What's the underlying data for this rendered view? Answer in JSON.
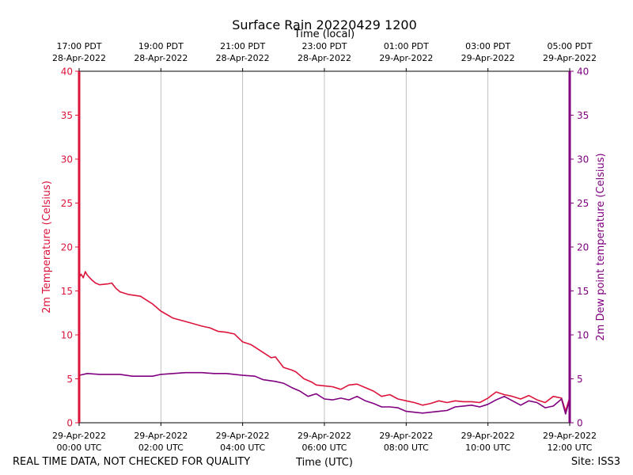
{
  "chart_data": {
    "type": "line",
    "title": "Surface Rain 20220429 1200",
    "top_axis_label": "Time (local)",
    "xlabel": "Time (UTC)",
    "ylabel_left": "2m Temperature (Celsius)",
    "ylabel_right": "2m Dew point temperature (Celsius)",
    "footer_left": "REAL TIME DATA, NOT CHECKED FOR QUALITY",
    "footer_right": "Site: ISS3",
    "x_range_hours": [
      0,
      12
    ],
    "ylim_left": [
      0,
      40
    ],
    "ylim_right": [
      0,
      40
    ],
    "y_ticks": [
      "0",
      "5",
      "10",
      "15",
      "20",
      "25",
      "30",
      "35",
      "40"
    ],
    "x_ticks_bottom": [
      {
        "hour": 0,
        "date": "29-Apr-2022",
        "time": "00:00 UTC"
      },
      {
        "hour": 2,
        "date": "29-Apr-2022",
        "time": "02:00 UTC"
      },
      {
        "hour": 4,
        "date": "29-Apr-2022",
        "time": "04:00 UTC"
      },
      {
        "hour": 6,
        "date": "29-Apr-2022",
        "time": "06:00 UTC"
      },
      {
        "hour": 8,
        "date": "29-Apr-2022",
        "time": "08:00 UTC"
      },
      {
        "hour": 10,
        "date": "29-Apr-2022",
        "time": "10:00 UTC"
      },
      {
        "hour": 12,
        "date": "29-Apr-2022",
        "time": "12:00 UTC"
      }
    ],
    "x_ticks_top": [
      {
        "hour": 0,
        "time": "17:00 PDT",
        "date": "28-Apr-2022"
      },
      {
        "hour": 2,
        "time": "19:00 PDT",
        "date": "28-Apr-2022"
      },
      {
        "hour": 4,
        "time": "21:00 PDT",
        "date": "28-Apr-2022"
      },
      {
        "hour": 6,
        "time": "23:00 PDT",
        "date": "28-Apr-2022"
      },
      {
        "hour": 8,
        "time": "01:00 PDT",
        "date": "29-Apr-2022"
      },
      {
        "hour": 10,
        "time": "03:00 PDT",
        "date": "29-Apr-2022"
      },
      {
        "hour": 12,
        "time": "05:00 PDT",
        "date": "29-Apr-2022"
      }
    ],
    "series": [
      {
        "name": "2m Temperature",
        "axis": "left",
        "color": "#dc143c",
        "x": [
          0,
          0.05,
          0.1,
          0.15,
          0.2,
          0.3,
          0.4,
          0.5,
          0.7,
          0.8,
          0.9,
          1.0,
          1.2,
          1.5,
          1.8,
          2.0,
          2.3,
          2.7,
          3.0,
          3.2,
          3.4,
          3.6,
          3.8,
          4.0,
          4.2,
          4.5,
          4.7,
          4.8,
          5.0,
          5.2,
          5.3,
          5.5,
          5.7,
          5.8,
          6.0,
          6.2,
          6.4,
          6.6,
          6.8,
          7.0,
          7.2,
          7.4,
          7.6,
          7.8,
          8.0,
          8.2,
          8.4,
          8.6,
          8.8,
          9.0,
          9.2,
          9.4,
          9.6,
          9.8,
          10.0,
          10.2,
          10.4,
          10.6,
          10.8,
          11.0,
          11.2,
          11.4,
          11.6,
          11.8,
          11.9,
          12.0
        ],
        "y": [
          16.5,
          16.9,
          16.5,
          17.2,
          16.8,
          16.3,
          15.9,
          15.7,
          15.8,
          15.9,
          15.3,
          14.9,
          14.6,
          14.4,
          13.5,
          12.7,
          11.9,
          11.4,
          11.0,
          10.8,
          10.4,
          10.3,
          10.1,
          9.2,
          8.9,
          8.0,
          7.4,
          7.5,
          6.3,
          6.0,
          5.8,
          5.0,
          4.6,
          4.3,
          4.2,
          4.1,
          3.8,
          4.3,
          4.4,
          4.0,
          3.6,
          3.0,
          3.2,
          2.7,
          2.5,
          2.3,
          2.0,
          2.2,
          2.5,
          2.3,
          2.5,
          2.4,
          2.4,
          2.3,
          2.8,
          3.5,
          3.2,
          3.0,
          2.7,
          3.1,
          2.6,
          2.3,
          3.0,
          2.8,
          1.3,
          2.9
        ]
      },
      {
        "name": "2m Dew point temperature",
        "axis": "right",
        "color": "#800080",
        "x": [
          0,
          0.2,
          0.5,
          0.8,
          1.0,
          1.3,
          1.5,
          1.8,
          2.0,
          2.3,
          2.6,
          3.0,
          3.3,
          3.6,
          4.0,
          4.3,
          4.5,
          4.8,
          5.0,
          5.2,
          5.4,
          5.6,
          5.8,
          6.0,
          6.2,
          6.4,
          6.6,
          6.8,
          7.0,
          7.2,
          7.4,
          7.6,
          7.8,
          8.0,
          8.2,
          8.4,
          8.6,
          8.8,
          9.0,
          9.2,
          9.4,
          9.6,
          9.8,
          10.0,
          10.2,
          10.4,
          10.6,
          10.8,
          11.0,
          11.2,
          11.4,
          11.6,
          11.8,
          11.9,
          12.0
        ],
        "y": [
          5.4,
          5.6,
          5.5,
          5.5,
          5.5,
          5.3,
          5.3,
          5.3,
          5.5,
          5.6,
          5.7,
          5.7,
          5.6,
          5.6,
          5.4,
          5.3,
          4.9,
          4.7,
          4.5,
          4.0,
          3.6,
          3.0,
          3.3,
          2.7,
          2.6,
          2.8,
          2.6,
          3.0,
          2.5,
          2.2,
          1.8,
          1.8,
          1.7,
          1.3,
          1.2,
          1.1,
          1.2,
          1.3,
          1.4,
          1.8,
          1.9,
          2.0,
          1.8,
          2.1,
          2.6,
          3.0,
          2.5,
          2.0,
          2.5,
          2.3,
          1.7,
          1.9,
          2.7,
          1.0,
          2.7
        ]
      }
    ]
  }
}
